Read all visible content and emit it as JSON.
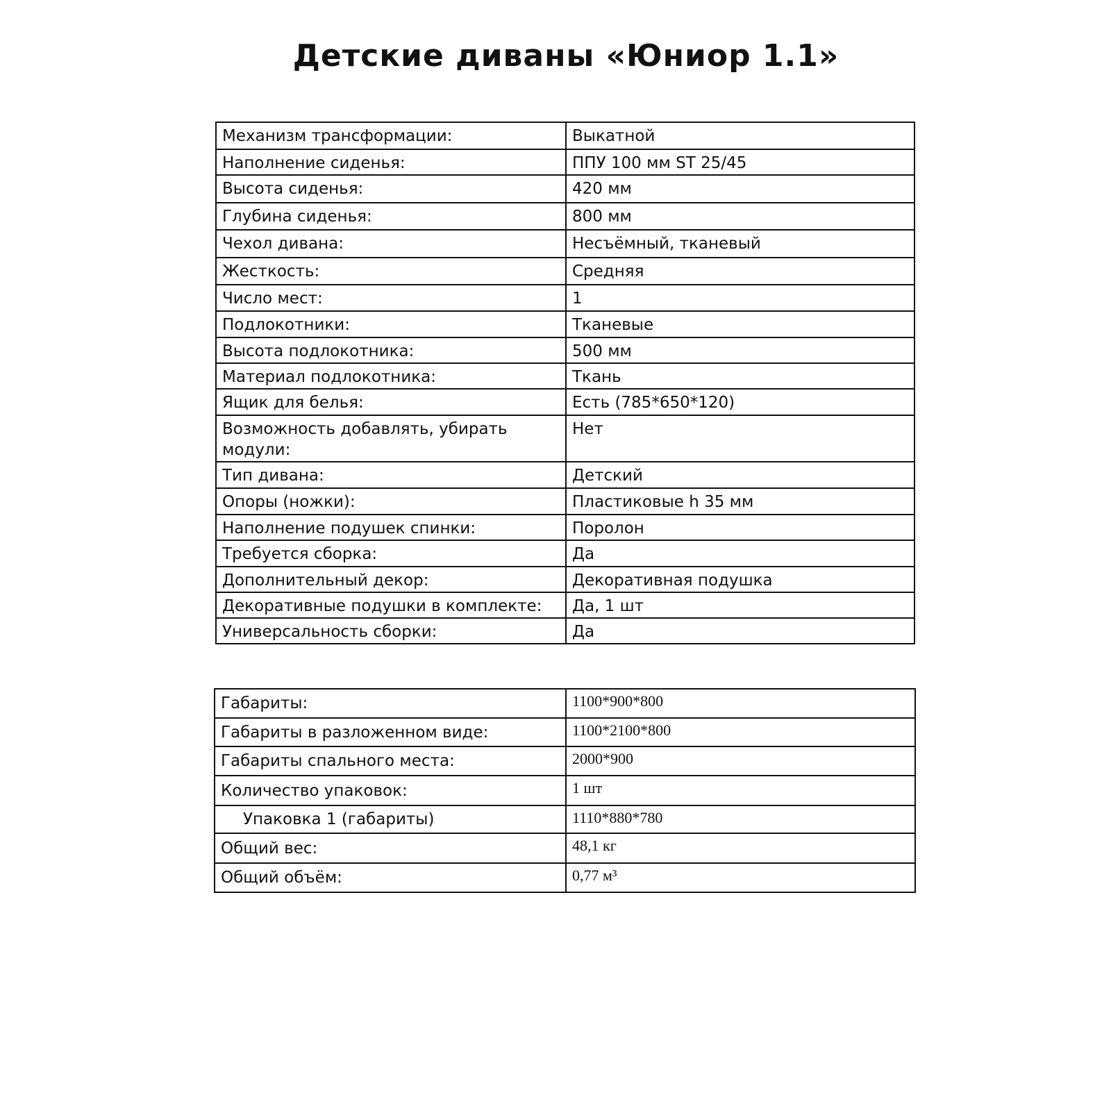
{
  "title": "Детские диваны «Юниор 1.1»",
  "specs": [
    {
      "label": "Механизм трансформации:",
      "value": "Выкатной"
    },
    {
      "label": "Наполнение сиденья:",
      "value": "ППУ 100 мм ST 25/45"
    },
    {
      "label": "Высота сиденья:",
      "value": "420 мм"
    },
    {
      "label": "Глубина сиденья:",
      "value": "800 мм"
    },
    {
      "label": "Чехол дивана:",
      "value": "Несъёмный, тканевый"
    },
    {
      "label": "Жесткость:",
      "value": "Средняя"
    },
    {
      "label": "Число мест:",
      "value": "1"
    },
    {
      "label": "Подлокотники:",
      "value": "Тканевые"
    },
    {
      "label": "Высота подлокотника:",
      "value": "500 мм"
    },
    {
      "label": "Материал подлокотника:",
      "value": "Ткань"
    },
    {
      "label": "Ящик для белья:",
      "value": "Есть (785*650*120)"
    },
    {
      "label": "Возможность добавлять, убирать модули:",
      "value": "Нет"
    },
    {
      "label": "Тип дивана:",
      "value": "Детский"
    },
    {
      "label": "Опоры (ножки):",
      "value": "Пластиковые h 35 мм"
    },
    {
      "label": "Наполнение подушек спинки:",
      "value": "Поролон"
    },
    {
      "label": "Требуется сборка:",
      "value": "Да"
    },
    {
      "label": "Дополнительный декор:",
      "value": "Декоративная подушка"
    },
    {
      "label": "Декоративные подушки в комплекте:",
      "value": "Да, 1 шт"
    },
    {
      "label": "Универсальность сборки:",
      "value": "Да"
    }
  ],
  "dimensions": [
    {
      "label": "Габариты:",
      "value": "1100*900*800"
    },
    {
      "label": "Габариты в разложенном виде:",
      "value": "1100*2100*800"
    },
    {
      "label": "Габариты спального места:",
      "value": "2000*900"
    },
    {
      "label": "Количество упаковок:",
      "value": "1 шт"
    },
    {
      "label": "Упаковка 1 (габариты)",
      "value": "1110*880*780",
      "indented": true
    },
    {
      "label": "Общий вес:",
      "value": "48,1 кг"
    },
    {
      "label": "Общий объём:",
      "value": "0,77 м³"
    }
  ]
}
